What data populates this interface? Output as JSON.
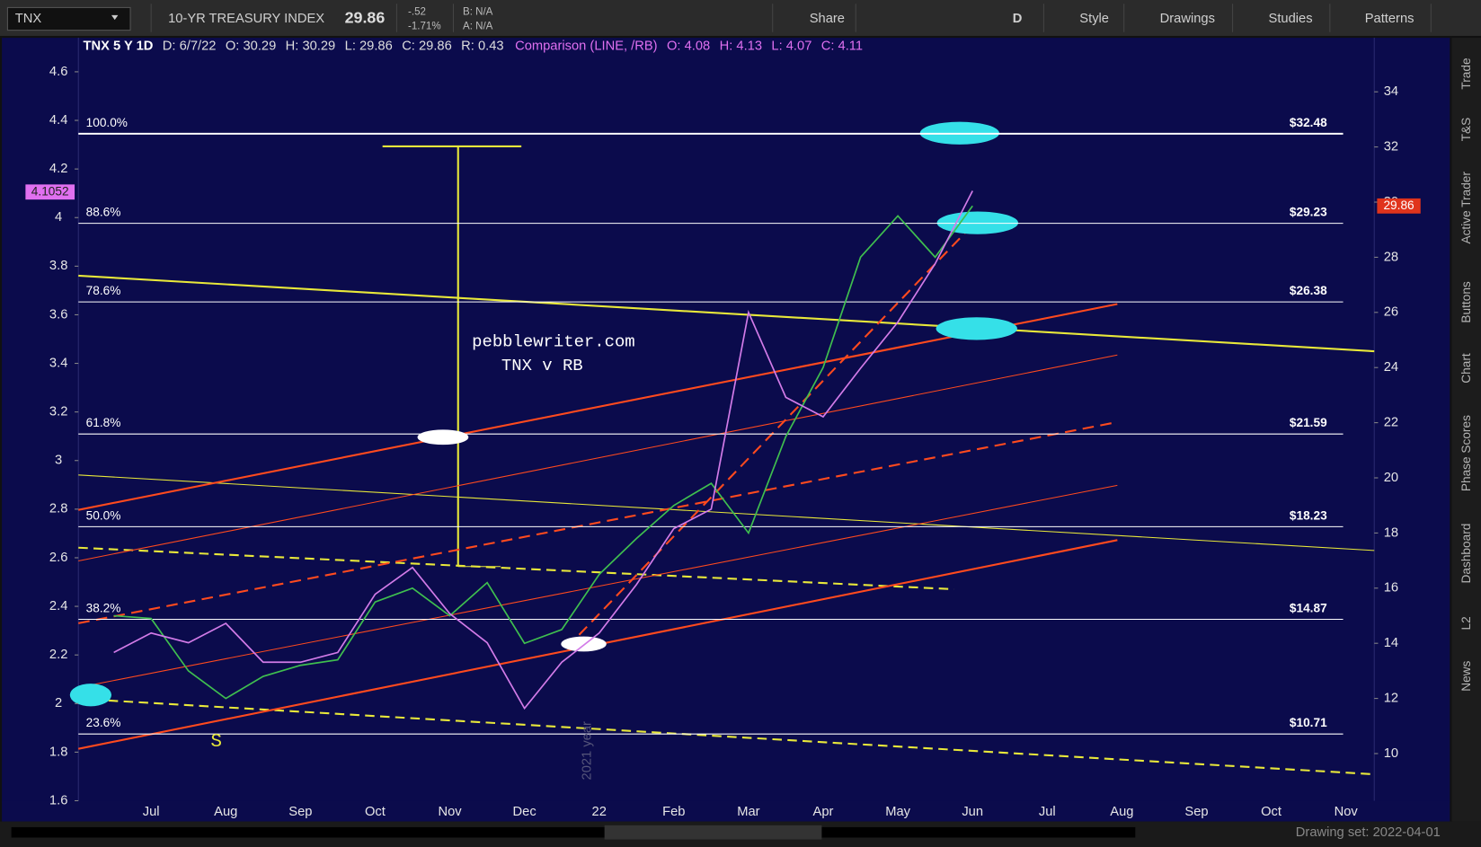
{
  "toolbar": {
    "symbol": "TNX",
    "description": "10-YR TREASURY INDEX",
    "last": "29.86",
    "change": "-.52",
    "change_pct": "-1.71%",
    "bid": "B: N/A",
    "ask": "A: N/A",
    "buttons": [
      "Share",
      "D",
      "Style",
      "Drawings",
      "Studies",
      "Patterns"
    ]
  },
  "header": {
    "tnx": [
      "TNX 5 Y 1D",
      "D: 6/7/22",
      "O: 30.29",
      "H: 30.29",
      "L: 29.86",
      "C: 29.86",
      "R: 0.43"
    ],
    "comparison": [
      "Comparison (LINE, /RB)",
      "O: 4.08",
      "H: 4.13",
      "L: 4.07",
      "C: 4.11"
    ]
  },
  "chart_data": {
    "type": "line",
    "categories": [
      null,
      "Jul",
      null,
      "Aug",
      null,
      "Sep",
      null,
      "Oct",
      null,
      "Nov",
      null,
      "Dec",
      null,
      "22",
      null,
      "Feb",
      null,
      "Mar",
      null,
      "Apr",
      null,
      "May",
      null,
      "Jun",
      null,
      "Jul",
      null,
      "Aug",
      null,
      "Sep",
      null,
      "Oct",
      null,
      "Nov"
    ],
    "series": [
      {
        "name": "TNX",
        "color": "#3fbf4f",
        "axis": "y2",
        "values": [
          15.0,
          14.9,
          13.0,
          12.0,
          12.8,
          13.2,
          13.4,
          15.5,
          16.0,
          15.0,
          16.2,
          14.0,
          14.5,
          16.5,
          17.8,
          19.0,
          19.8,
          18.0,
          21.5,
          24.0,
          28.0,
          29.5,
          28.0,
          29.86,
          null,
          null,
          null,
          null,
          null,
          null,
          null,
          null,
          null,
          null
        ]
      },
      {
        "name": "Comparison (LINE, /RB)",
        "color": "#d27be8",
        "values": [
          2.21,
          2.29,
          2.25,
          2.33,
          2.17,
          2.17,
          2.21,
          2.45,
          2.56,
          2.37,
          2.25,
          1.98,
          2.17,
          2.29,
          2.49,
          2.72,
          2.8,
          3.61,
          3.26,
          3.18,
          3.38,
          3.57,
          3.81,
          4.11,
          null,
          null,
          null,
          null,
          null,
          null,
          null,
          null,
          null,
          null
        ]
      }
    ],
    "ylim": [
      1.6,
      4.74
    ],
    "yticks": [
      1.6,
      1.8,
      2,
      2.2,
      2.4,
      2.6,
      2.8,
      3,
      3.2,
      3.4,
      3.6,
      3.8,
      4,
      4.2,
      4.4,
      4.6
    ],
    "y2lim": [
      8.29,
      35.96
    ],
    "y2ticks": [
      10,
      12,
      14,
      16,
      18,
      20,
      22,
      24,
      26,
      28,
      30,
      32,
      34
    ],
    "fib_levels": [
      {
        "label": "100.0%",
        "price": {
          "value": 32.48,
          "label": "$32.48"
        }
      },
      {
        "label": "88.6%",
        "price": {
          "value": 29.23,
          "label": "$29.23"
        }
      },
      {
        "label": "78.6%",
        "price": {
          "value": 26.38,
          "label": "$26.38"
        }
      },
      {
        "label": "61.8%",
        "price": {
          "value": 21.59,
          "label": "$21.59"
        }
      },
      {
        "label": "50.0%",
        "price": {
          "value": 18.23,
          "label": "$18.23"
        }
      },
      {
        "label": "38.2%",
        "price": {
          "value": 14.87,
          "label": "$14.87"
        }
      },
      {
        "label": "23.6%",
        "price": {
          "value": 10.71,
          "label": "$10.71"
        }
      }
    ],
    "comparison_marker": {
      "value": 4.1052,
      "label": "4.1052"
    },
    "last_marker": {
      "value": 29.86,
      "label": "29.86"
    },
    "annotations": [
      "pebblewriter.com",
      "TNX v RB",
      "S",
      "2021 year"
    ]
  },
  "side_tabs": [
    "Trade",
    "T&S",
    "Active Trader",
    "Buttons",
    "Chart",
    "Phase Scores",
    "Dashboard",
    "L2",
    "News"
  ],
  "footer": {
    "drawing_set": "Drawing set: 2022-04-01"
  }
}
